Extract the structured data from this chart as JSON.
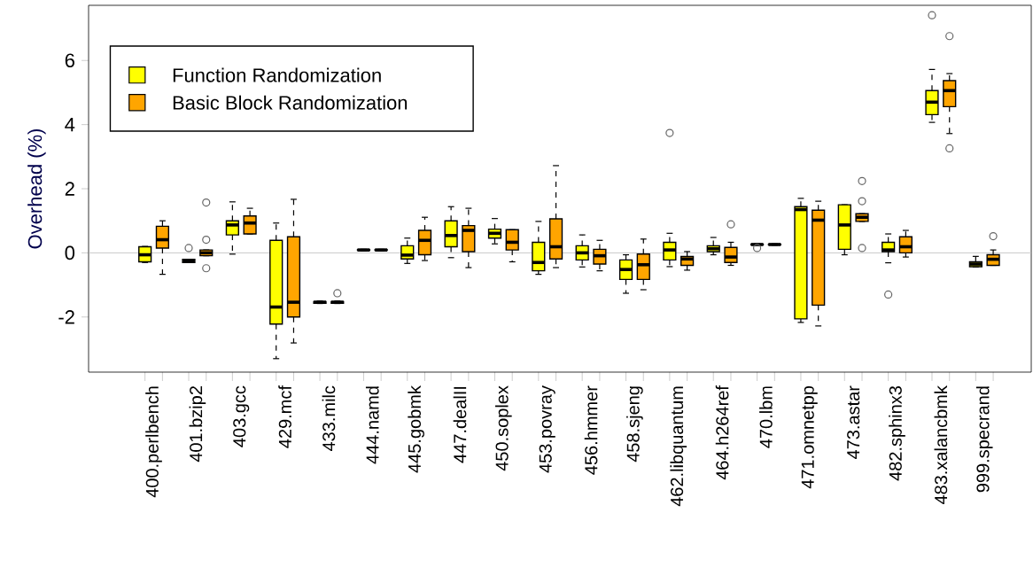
{
  "chart_data": {
    "type": "box",
    "ylabel": "Overhead (%)",
    "categories": [
      "400.perlbench",
      "401.bzip2",
      "403.gcc",
      "429.mcf",
      "433.milc",
      "444.namd",
      "445.gobmk",
      "447.dealII",
      "450.soplex",
      "453.povray",
      "456.hmmer",
      "458.sjeng",
      "462.libquantum",
      "464.h264ref",
      "470.lbm",
      "471.omnetpp",
      "473.astar",
      "482.sphinx3",
      "483.xalancbmk",
      "999.specrand"
    ],
    "ylim": [
      -3.72,
      7.72
    ],
    "yticks": [
      -2,
      0,
      2,
      4,
      6
    ],
    "legend": "top left",
    "ref_lines": [
      {
        "axis": "y",
        "value": 0,
        "color": "#bbbbbb"
      }
    ],
    "series": [
      {
        "name": "Function Randomization",
        "color": "#ffff00",
        "boxes": [
          {
            "low": -0.3,
            "q1": -0.28,
            "median": -0.06,
            "q3": 0.19,
            "high": 0.2
          },
          {
            "low": -0.3,
            "q1": -0.3,
            "median": -0.25,
            "q3": -0.2,
            "high": -0.2,
            "outliers": [
              0.15
            ]
          },
          {
            "low": -0.04,
            "q1": 0.56,
            "median": 0.87,
            "q3": 1.0,
            "high": 1.59
          },
          {
            "low": -3.3,
            "q1": -2.22,
            "median": -1.69,
            "q3": 0.39,
            "high": 0.93
          },
          {
            "low": -1.58,
            "q1": -1.57,
            "median": -1.54,
            "q3": -1.52,
            "high": -1.5
          },
          {
            "low": 0.07,
            "q1": 0.08,
            "median": 0.09,
            "q3": 0.1,
            "high": 0.11
          },
          {
            "low": -0.33,
            "q1": -0.19,
            "median": -0.07,
            "q3": 0.22,
            "high": 0.46
          },
          {
            "low": -0.15,
            "q1": 0.19,
            "median": 0.54,
            "q3": 1.0,
            "high": 1.44
          },
          {
            "low": 0.28,
            "q1": 0.46,
            "median": 0.61,
            "q3": 0.74,
            "high": 1.07
          },
          {
            "low": -0.67,
            "q1": -0.56,
            "median": -0.3,
            "q3": 0.33,
            "high": 0.98
          },
          {
            "low": -0.44,
            "q1": -0.22,
            "median": 0.0,
            "q3": 0.22,
            "high": 0.56
          },
          {
            "low": -1.26,
            "q1": -0.83,
            "median": -0.52,
            "q3": -0.22,
            "high": -0.06
          },
          {
            "low": -0.43,
            "q1": -0.22,
            "median": 0.09,
            "q3": 0.33,
            "high": 0.61,
            "outliers": [
              3.74
            ]
          },
          {
            "low": -0.06,
            "q1": 0.04,
            "median": 0.13,
            "q3": 0.22,
            "high": 0.48
          },
          {
            "low": 0.24,
            "q1": 0.25,
            "median": 0.26,
            "q3": 0.27,
            "high": 0.28,
            "outliers": [
              0.15
            ]
          },
          {
            "low": -2.17,
            "q1": -2.06,
            "median": 1.35,
            "q3": 1.44,
            "high": 1.7
          },
          {
            "low": -0.06,
            "q1": 0.11,
            "median": 0.87,
            "q3": 1.5,
            "high": 1.5
          },
          {
            "low": -0.31,
            "q1": 0.04,
            "median": 0.09,
            "q3": 0.33,
            "high": 0.59,
            "outliers": [
              -1.3
            ]
          },
          {
            "low": 4.07,
            "q1": 4.31,
            "median": 4.7,
            "q3": 5.06,
            "high": 5.72,
            "outliers": [
              7.41
            ]
          },
          {
            "low": -0.44,
            "q1": -0.43,
            "median": -0.35,
            "q3": -0.28,
            "high": -0.11
          }
        ]
      },
      {
        "name": "Basic Block Randomization",
        "color": "#ffa500",
        "boxes": [
          {
            "low": -0.67,
            "q1": 0.15,
            "median": 0.41,
            "q3": 0.83,
            "high": 1.0
          },
          {
            "low": -0.09,
            "q1": -0.09,
            "median": 0.0,
            "q3": 0.09,
            "high": 0.09,
            "outliers": [
              1.57,
              0.41,
              -0.48
            ]
          },
          {
            "low": 0.59,
            "q1": 0.59,
            "median": 0.93,
            "q3": 1.15,
            "high": 1.39
          },
          {
            "low": -2.81,
            "q1": -2.0,
            "median": -1.54,
            "q3": 0.5,
            "high": 1.67
          },
          {
            "low": -1.58,
            "q1": -1.57,
            "median": -1.54,
            "q3": -1.52,
            "high": -1.5,
            "outliers": [
              -1.26
            ]
          },
          {
            "low": 0.07,
            "q1": 0.08,
            "median": 0.09,
            "q3": 0.1,
            "high": 0.11
          },
          {
            "low": -0.24,
            "q1": -0.06,
            "median": 0.39,
            "q3": 0.7,
            "high": 1.11
          },
          {
            "low": -0.46,
            "q1": 0.04,
            "median": 0.7,
            "q3": 0.85,
            "high": 1.39
          },
          {
            "low": -0.28,
            "q1": 0.09,
            "median": 0.33,
            "q3": 0.72,
            "high": 0.72
          },
          {
            "low": -0.46,
            "q1": -0.19,
            "median": 0.19,
            "q3": 1.06,
            "high": 2.72
          },
          {
            "low": -0.56,
            "q1": -0.35,
            "median": -0.09,
            "q3": 0.11,
            "high": 0.39
          },
          {
            "low": -1.15,
            "q1": -0.83,
            "median": -0.37,
            "q3": -0.04,
            "high": 0.43
          },
          {
            "low": -0.54,
            "q1": -0.39,
            "median": -0.19,
            "q3": -0.11,
            "high": 0.04
          },
          {
            "low": -0.39,
            "q1": -0.3,
            "median": -0.13,
            "q3": 0.17,
            "high": 0.33,
            "outliers": [
              0.89
            ]
          },
          {
            "low": 0.24,
            "q1": 0.25,
            "median": 0.26,
            "q3": 0.27,
            "high": 0.28
          },
          {
            "low": -2.28,
            "q1": -1.63,
            "median": 1.02,
            "q3": 1.33,
            "high": 1.61
          },
          {
            "low": 0.98,
            "q1": 0.98,
            "median": 1.11,
            "q3": 1.22,
            "high": 1.22,
            "outliers": [
              2.24,
              1.61,
              0.15
            ]
          },
          {
            "low": -0.13,
            "q1": 0.0,
            "median": 0.19,
            "q3": 0.5,
            "high": 0.7
          },
          {
            "low": 3.72,
            "q1": 4.56,
            "median": 5.06,
            "q3": 5.37,
            "high": 5.59,
            "outliers": [
              6.76,
              3.26
            ]
          },
          {
            "low": -0.39,
            "q1": -0.39,
            "median": -0.2,
            "q3": -0.06,
            "high": 0.09,
            "outliers": [
              0.52
            ]
          }
        ]
      }
    ]
  }
}
